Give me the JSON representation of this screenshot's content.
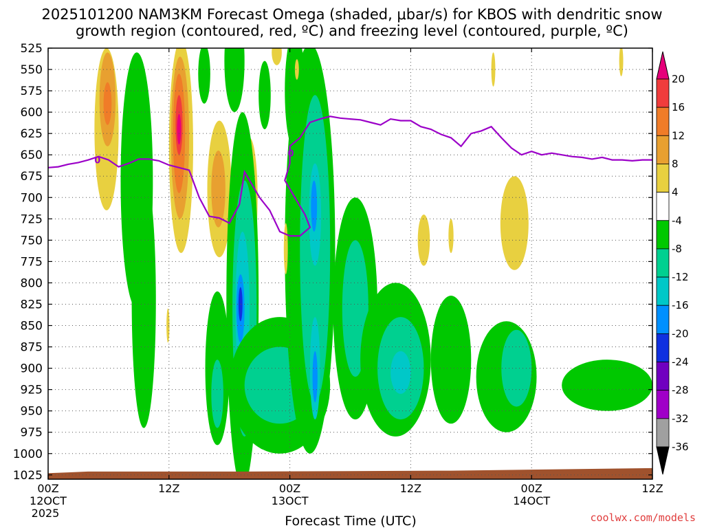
{
  "chart_data": {
    "type": "heatmap",
    "title_line1": "2025101200 NAM3KM Forecast Omega (shaded, μbar/s) for KBOS with dendritic snow",
    "title_line2": "growth region (contoured, red, ºC) and freezing level (contoured, purple, ºC)",
    "xlabel": "Forecast Time (UTC)",
    "credit": "coolwx.com/models",
    "y_axis": {
      "ticks": [
        525,
        550,
        575,
        600,
        625,
        650,
        675,
        700,
        725,
        750,
        775,
        800,
        825,
        850,
        875,
        900,
        925,
        950,
        975,
        1000,
        1025
      ],
      "range": [
        525,
        1030
      ],
      "inverted": true,
      "units": "hPa"
    },
    "x_axis": {
      "range_hours": [
        0,
        60
      ],
      "ticks": [
        {
          "hour": 0,
          "label": "00Z",
          "sub1": "12OCT",
          "sub2": "2025"
        },
        {
          "hour": 12,
          "label": "12Z",
          "sub1": "",
          "sub2": ""
        },
        {
          "hour": 24,
          "label": "00Z",
          "sub1": "13OCT",
          "sub2": ""
        },
        {
          "hour": 36,
          "label": "12Z",
          "sub1": "",
          "sub2": ""
        },
        {
          "hour": 48,
          "label": "00Z",
          "sub1": "14OCT",
          "sub2": ""
        },
        {
          "hour": 60,
          "label": "12Z",
          "sub1": "",
          "sub2": ""
        }
      ]
    },
    "colorbar": {
      "labels": [
        "20",
        "16",
        "12",
        "8",
        "4",
        "-4",
        "-8",
        "-12",
        "-16",
        "-20",
        "-24",
        "-28",
        "-32",
        "-36"
      ],
      "colors": [
        "#e6007a",
        "#f03c3c",
        "#f07c28",
        "#e8a030",
        "#e8d040",
        "#ffffff",
        "#00c800",
        "#00d090",
        "#00c8c8",
        "#0090ff",
        "#1030e0",
        "#7000c0",
        "#a000c8",
        "#a0a0a0",
        "#000000"
      ],
      "top_triangle_color": "#e6007a",
      "bottom_triangle_color": "#000000"
    },
    "freezing_level_label": "0",
    "freezing_level": [
      [
        0,
        665
      ],
      [
        1,
        664
      ],
      [
        2,
        661
      ],
      [
        3,
        659
      ],
      [
        4,
        656
      ],
      [
        5,
        652
      ],
      [
        6,
        656
      ],
      [
        7,
        664
      ],
      [
        8,
        660
      ],
      [
        9,
        655
      ],
      [
        10,
        655
      ],
      [
        11,
        657
      ],
      [
        12,
        662
      ],
      [
        13,
        665
      ],
      [
        14,
        668
      ],
      [
        15,
        700
      ],
      [
        16,
        722
      ],
      [
        17,
        724
      ],
      [
        18,
        730
      ],
      [
        19,
        708
      ],
      [
        19.5,
        670
      ],
      [
        20,
        680
      ],
      [
        21,
        700
      ],
      [
        22,
        715
      ],
      [
        23,
        740
      ],
      [
        24,
        745
      ],
      [
        25,
        745
      ],
      [
        26,
        735
      ],
      [
        25.5,
        720
      ],
      [
        24.5,
        700
      ],
      [
        23.5,
        680
      ],
      [
        24,
        660
      ],
      [
        24,
        640
      ],
      [
        25,
        630
      ],
      [
        26,
        612
      ],
      [
        27,
        608
      ],
      [
        28,
        605
      ],
      [
        29,
        607
      ],
      [
        30,
        608
      ],
      [
        31,
        609
      ],
      [
        32,
        612
      ],
      [
        33,
        615
      ],
      [
        34,
        608
      ],
      [
        35,
        610
      ],
      [
        36,
        610
      ],
      [
        37,
        617
      ],
      [
        38,
        620
      ],
      [
        39,
        626
      ],
      [
        40,
        630
      ],
      [
        41,
        640
      ],
      [
        42,
        625
      ],
      [
        43,
        622
      ],
      [
        44,
        617
      ],
      [
        45,
        630
      ],
      [
        46,
        642
      ],
      [
        47,
        650
      ],
      [
        48,
        646
      ],
      [
        49,
        650
      ],
      [
        50,
        648
      ],
      [
        51,
        650
      ],
      [
        52,
        652
      ],
      [
        53,
        653
      ],
      [
        54,
        655
      ],
      [
        55,
        653
      ],
      [
        56,
        656
      ],
      [
        57,
        656
      ],
      [
        58,
        657
      ],
      [
        59,
        656
      ],
      [
        60,
        656
      ]
    ],
    "omega_features": [
      {
        "level": "pos4",
        "center": [
          5.8,
          620
        ],
        "rx": 1.2,
        "ry": 95
      },
      {
        "level": "pos8",
        "center": [
          5.9,
          585
        ],
        "rx": 0.8,
        "ry": 55
      },
      {
        "level": "pos12",
        "center": [
          5.9,
          590
        ],
        "rx": 0.4,
        "ry": 25
      },
      {
        "level": "neg4",
        "center": [
          8.8,
          680
        ],
        "rx": 1.6,
        "ry": 150
      },
      {
        "level": "neg4",
        "center": [
          9.5,
          820
        ],
        "rx": 1.2,
        "ry": 150
      },
      {
        "level": "pos4",
        "center": [
          13.2,
          640
        ],
        "rx": 1.2,
        "ry": 125
      },
      {
        "level": "pos8",
        "center": [
          13.1,
          630
        ],
        "rx": 0.9,
        "ry": 95
      },
      {
        "level": "pos12",
        "center": [
          13.0,
          625
        ],
        "rx": 0.6,
        "ry": 70
      },
      {
        "level": "pos16",
        "center": [
          13.0,
          615
        ],
        "rx": 0.35,
        "ry": 35
      },
      {
        "level": "pos20",
        "center": [
          13.0,
          620
        ],
        "rx": 0.2,
        "ry": 18
      },
      {
        "level": "neg4",
        "center": [
          15.5,
          555
        ],
        "rx": 0.6,
        "ry": 35
      },
      {
        "level": "pos4",
        "center": [
          17.0,
          690
        ],
        "rx": 1.2,
        "ry": 80
      },
      {
        "level": "pos8",
        "center": [
          16.9,
          690
        ],
        "rx": 0.7,
        "ry": 45
      },
      {
        "level": "neg4",
        "center": [
          18.5,
          540
        ],
        "rx": 1.0,
        "ry": 60
      },
      {
        "level": "pos4",
        "center": [
          20.0,
          700
        ],
        "rx": 0.8,
        "ry": 70
      },
      {
        "level": "neg4",
        "center": [
          19.3,
          820
        ],
        "rx": 1.6,
        "ry": 220
      },
      {
        "level": "neg8",
        "center": [
          19.5,
          830
        ],
        "rx": 1.2,
        "ry": 150
      },
      {
        "level": "neg12",
        "center": [
          19.3,
          830
        ],
        "rx": 0.7,
        "ry": 90
      },
      {
        "level": "neg16",
        "center": [
          19.1,
          830
        ],
        "rx": 0.4,
        "ry": 40
      },
      {
        "level": "neg20",
        "center": [
          19.1,
          825
        ],
        "rx": 0.2,
        "ry": 20
      },
      {
        "level": "neg4",
        "center": [
          16.8,
          900
        ],
        "rx": 1.2,
        "ry": 90
      },
      {
        "level": "neg8",
        "center": [
          16.8,
          930
        ],
        "rx": 0.6,
        "ry": 40
      },
      {
        "level": "neg4",
        "center": [
          23.0,
          920
        ],
        "rx": 5.0,
        "ry": 80
      },
      {
        "level": "neg8",
        "center": [
          23.0,
          920
        ],
        "rx": 3.5,
        "ry": 45
      },
      {
        "level": "neg4",
        "center": [
          26.0,
          760
        ],
        "rx": 2.5,
        "ry": 240
      },
      {
        "level": "neg8",
        "center": [
          26.5,
          760
        ],
        "rx": 1.5,
        "ry": 180
      },
      {
        "level": "neg12",
        "center": [
          26.5,
          720
        ],
        "rx": 0.6,
        "ry": 60
      },
      {
        "level": "neg16",
        "center": [
          26.4,
          710
        ],
        "rx": 0.3,
        "ry": 30
      },
      {
        "level": "neg12",
        "center": [
          26.5,
          900
        ],
        "rx": 0.5,
        "ry": 60
      },
      {
        "level": "neg16",
        "center": [
          26.5,
          910
        ],
        "rx": 0.25,
        "ry": 30
      },
      {
        "level": "neg4",
        "center": [
          24.5,
          575
        ],
        "rx": 1.0,
        "ry": 70
      },
      {
        "level": "neg4",
        "center": [
          21.5,
          580
        ],
        "rx": 0.6,
        "ry": 40
      },
      {
        "level": "neg4",
        "center": [
          30.5,
          830
        ],
        "rx": 2.2,
        "ry": 130
      },
      {
        "level": "neg8",
        "center": [
          30.5,
          830
        ],
        "rx": 1.3,
        "ry": 80
      },
      {
        "level": "neg4",
        "center": [
          34.5,
          890
        ],
        "rx": 3.5,
        "ry": 90
      },
      {
        "level": "neg8",
        "center": [
          35.0,
          900
        ],
        "rx": 2.3,
        "ry": 60
      },
      {
        "level": "neg12",
        "center": [
          35.0,
          905
        ],
        "rx": 1.0,
        "ry": 25
      },
      {
        "level": "neg4",
        "center": [
          40.0,
          890
        ],
        "rx": 2.0,
        "ry": 75
      },
      {
        "level": "neg4",
        "center": [
          45.5,
          910
        ],
        "rx": 3.0,
        "ry": 65
      },
      {
        "level": "neg8",
        "center": [
          46.5,
          900
        ],
        "rx": 1.5,
        "ry": 45
      },
      {
        "level": "neg4",
        "center": [
          55.5,
          920
        ],
        "rx": 4.5,
        "ry": 30
      },
      {
        "level": "pos4",
        "center": [
          37.3,
          750
        ],
        "rx": 0.6,
        "ry": 30
      },
      {
        "level": "pos4",
        "center": [
          40.0,
          745
        ],
        "rx": 0.25,
        "ry": 20
      },
      {
        "level": "pos4",
        "center": [
          46.3,
          730
        ],
        "rx": 1.4,
        "ry": 55
      },
      {
        "level": "pos4",
        "center": [
          44.2,
          550
        ],
        "rx": 0.2,
        "ry": 20
      },
      {
        "level": "pos4",
        "center": [
          24.7,
          550
        ],
        "rx": 0.2,
        "ry": 12
      },
      {
        "level": "pos4",
        "center": [
          22.7,
          530
        ],
        "rx": 0.5,
        "ry": 15
      },
      {
        "level": "pos4",
        "center": [
          11.9,
          850
        ],
        "rx": 0.15,
        "ry": 20
      },
      {
        "level": "pos4",
        "center": [
          23.6,
          760
        ],
        "rx": 0.2,
        "ry": 30
      },
      {
        "level": "pos4",
        "center": [
          56.9,
          540
        ],
        "rx": 0.2,
        "ry": 18
      }
    ],
    "terrain_color": "#a0522d"
  }
}
